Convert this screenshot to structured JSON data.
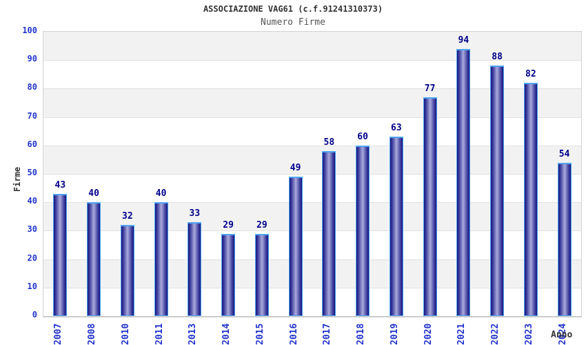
{
  "header": {
    "title": "ASSOCIAZIONE VAG61 (c.f.91241310373)",
    "subtitle": "Numero Firme"
  },
  "chart_data": {
    "type": "bar",
    "title": "ASSOCIAZIONE VAG61 (c.f.91241310373)",
    "subtitle": "Numero Firme",
    "categories": [
      "2007",
      "2008",
      "2010",
      "2011",
      "2013",
      "2014",
      "2015",
      "2016",
      "2017",
      "2018",
      "2019",
      "2020",
      "2021",
      "2022",
      "2023",
      "2024"
    ],
    "values": [
      43,
      40,
      32,
      40,
      33,
      29,
      29,
      49,
      58,
      60,
      63,
      77,
      94,
      88,
      82,
      54
    ],
    "xlabel": "Anno",
    "ylabel": "Firme",
    "ylim": [
      0,
      100
    ],
    "ytick_step": 10,
    "yticks": [
      0,
      10,
      20,
      30,
      40,
      50,
      60,
      70,
      80,
      90,
      100
    ],
    "grid": true,
    "legend": "none",
    "colors": {
      "band_gray": "#f2f2f2",
      "band_white": "#ffffff",
      "grid_line": "#e0e0e0",
      "plot_border": "#d3d3d3",
      "bar_edge": "#17177f",
      "bar_mid": "#3c3c9d",
      "bar_center": "#aaaadc",
      "bar_border": "#4da4f0",
      "value_label": "#00008b",
      "tick_label": "#2233cc",
      "title_text": "#333333",
      "subtitle_text": "#555555"
    }
  }
}
